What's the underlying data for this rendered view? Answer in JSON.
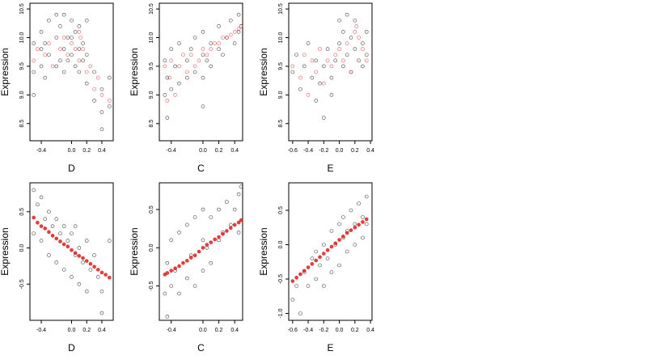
{
  "chart_data": [
    {
      "type": "scatter",
      "xlabel": "D",
      "ylabel": "Expression",
      "xlim": [
        -0.55,
        0.55
      ],
      "ylim": [
        8.2,
        10.6
      ],
      "xticks": [
        -0.4,
        0.0,
        0.2,
        0.4
      ],
      "xtick_labels": [
        "-0.4",
        "0.0",
        "0.2",
        "0.4"
      ],
      "yticks": [
        8.5,
        9.0,
        9.5,
        10.0,
        10.5
      ],
      "ytick_labels": [
        "8.5",
        "9.0",
        "9.5",
        "10.0",
        "10.5"
      ],
      "series": [
        {
          "marker": "open-circle",
          "color": "#000000",
          "x": [
            -0.5,
            -0.5,
            -0.5,
            -0.4,
            -0.4,
            -0.4,
            -0.35,
            -0.35,
            -0.3,
            -0.3,
            -0.2,
            -0.2,
            -0.2,
            -0.15,
            -0.15,
            -0.1,
            -0.1,
            -0.1,
            -0.05,
            -0.05,
            0.0,
            0.0,
            0.0,
            0.05,
            0.05,
            0.1,
            0.1,
            0.1,
            0.15,
            0.15,
            0.2,
            0.2,
            0.2,
            0.3,
            0.3,
            0.4,
            0.4,
            0.4,
            0.5,
            0.5
          ],
          "y": [
            9.4,
            9.9,
            9.0,
            9.8,
            9.5,
            10.1,
            9.3,
            9.9,
            9.7,
            10.3,
            9.5,
            10.0,
            10.4,
            9.6,
            10.2,
            9.8,
            9.4,
            10.4,
            10.0,
            9.6,
            10.3,
            9.7,
            10.0,
            9.5,
            10.1,
            9.8,
            10.2,
            9.4,
            9.9,
            9.6,
            9.2,
            9.7,
            10.3,
            8.9,
            9.4,
            8.7,
            9.1,
            8.4,
            9.3,
            8.8
          ]
        },
        {
          "marker": "open-circle",
          "color": "#e0201c",
          "x": [
            -0.5,
            -0.45,
            -0.35,
            -0.3,
            -0.25,
            -0.15,
            -0.1,
            -0.05,
            0.0,
            0.05,
            0.1,
            0.1,
            0.12,
            0.15,
            0.2,
            0.25,
            0.3,
            0.35,
            0.4,
            0.5
          ],
          "y": [
            9.6,
            9.8,
            9.7,
            9.9,
            9.5,
            9.8,
            10.0,
            9.7,
            9.9,
            9.8,
            10.1,
            9.6,
            10.0,
            9.8,
            9.4,
            9.5,
            9.1,
            9.3,
            9.0,
            8.9
          ]
        }
      ]
    },
    {
      "type": "scatter",
      "xlabel": "C",
      "ylabel": "Expression",
      "xlim": [
        -0.55,
        0.5
      ],
      "ylim": [
        8.2,
        10.6
      ],
      "xticks": [
        -0.4,
        0.0,
        0.2,
        0.4
      ],
      "xtick_labels": [
        "-0.4",
        "0.0",
        "0.2",
        "0.4"
      ],
      "yticks": [
        8.5,
        9.0,
        9.5,
        10.0,
        10.5
      ],
      "ytick_labels": [
        "8.5",
        "9.0",
        "9.5",
        "10.0",
        "10.5"
      ],
      "series": [
        {
          "marker": "open-circle",
          "color": "#000000",
          "x": [
            -0.48,
            -0.48,
            -0.45,
            -0.45,
            -0.4,
            -0.4,
            -0.35,
            -0.3,
            -0.3,
            -0.2,
            -0.2,
            -0.15,
            -0.1,
            -0.1,
            0.0,
            0.0,
            0.0,
            0.0,
            0.05,
            0.1,
            0.1,
            0.2,
            0.2,
            0.25,
            0.3,
            0.35,
            0.4,
            0.45,
            0.45,
            0.48
          ],
          "y": [
            9.0,
            9.6,
            8.6,
            9.3,
            9.8,
            9.1,
            9.5,
            9.9,
            9.2,
            9.6,
            9.3,
            9.8,
            9.4,
            10.0,
            8.8,
            9.3,
            9.7,
            10.1,
            9.6,
            9.9,
            9.5,
            9.8,
            10.2,
            9.7,
            10.0,
            10.3,
            9.9,
            10.1,
            10.4,
            10.2
          ]
        },
        {
          "marker": "open-circle",
          "color": "#e0201c",
          "x": [
            -0.48,
            -0.45,
            -0.42,
            -0.4,
            -0.35,
            -0.3,
            -0.25,
            -0.2,
            -0.15,
            -0.1,
            -0.05,
            0.0,
            0.05,
            0.1,
            0.15,
            0.2,
            0.25,
            0.3,
            0.35,
            0.4,
            0.45,
            0.48
          ],
          "y": [
            9.5,
            8.9,
            9.3,
            9.6,
            9.0,
            9.5,
            9.7,
            9.4,
            9.7,
            9.5,
            9.6,
            9.8,
            9.7,
            9.8,
            9.9,
            9.9,
            10.0,
            10.0,
            10.05,
            10.1,
            10.15,
            10.2
          ]
        }
      ]
    },
    {
      "type": "scatter",
      "xlabel": "E",
      "ylabel": "Expression",
      "xlim": [
        -0.65,
        0.42
      ],
      "ylim": [
        8.2,
        10.6
      ],
      "xticks": [
        -0.6,
        -0.4,
        -0.2,
        0.0,
        0.2,
        0.4
      ],
      "xtick_labels": [
        "-0.6",
        "-0.4",
        "-0.2",
        "0.0",
        "0.2",
        "0.4"
      ],
      "yticks": [
        8.5,
        9.0,
        9.5,
        10.0,
        10.5
      ],
      "ytick_labels": [
        "8.5",
        "9.0",
        "9.5",
        "10.0",
        "10.5"
      ],
      "series": [
        {
          "marker": "open-circle",
          "color": "#000000",
          "x": [
            -0.6,
            -0.55,
            -0.5,
            -0.45,
            -0.4,
            -0.35,
            -0.3,
            -0.3,
            -0.25,
            -0.2,
            -0.2,
            -0.15,
            -0.1,
            -0.1,
            -0.05,
            0.0,
            0.0,
            0.05,
            0.05,
            0.1,
            0.1,
            0.15,
            0.15,
            0.2,
            0.2,
            0.25,
            0.3,
            0.3,
            0.35,
            0.35
          ],
          "y": [
            9.4,
            9.7,
            9.1,
            9.5,
            9.9,
            9.3,
            9.6,
            8.9,
            9.2,
            9.5,
            8.6,
            9.8,
            9.3,
            9.0,
            9.6,
            9.9,
            10.3,
            9.5,
            10.1,
            9.7,
            10.4,
            9.4,
            10.0,
            9.8,
            10.3,
            9.6,
            9.9,
            9.5,
            9.7,
            10.1
          ]
        },
        {
          "marker": "open-circle",
          "color": "#e0201c",
          "x": [
            -0.6,
            -0.5,
            -0.45,
            -0.4,
            -0.35,
            -0.3,
            -0.25,
            -0.2,
            -0.15,
            -0.1,
            -0.05,
            0.0,
            0.05,
            0.1,
            0.15,
            0.2,
            0.22,
            0.25,
            0.3,
            0.35
          ],
          "y": [
            9.5,
            9.3,
            9.7,
            9.0,
            9.6,
            9.4,
            9.8,
            9.2,
            9.6,
            9.5,
            9.7,
            9.8,
            9.6,
            9.9,
            9.4,
            10.1,
            10.2,
            10.0,
            9.8,
            9.6
          ]
        }
      ]
    },
    {
      "type": "scatter",
      "xlabel": "D",
      "ylabel": "Expression",
      "xlim": [
        -0.55,
        0.55
      ],
      "ylim": [
        -1.0,
        0.9
      ],
      "xticks": [
        -0.4,
        0.0,
        0.2,
        0.4
      ],
      "xtick_labels": [
        "-0.4",
        "0.0",
        "0.2",
        "0.4"
      ],
      "yticks": [
        -0.5,
        0.0,
        0.5
      ],
      "ytick_labels": [
        "-0.5",
        "0.0",
        "0.5"
      ],
      "series": [
        {
          "marker": "open-circle",
          "color": "#000000",
          "x": [
            -0.5,
            -0.5,
            -0.45,
            -0.4,
            -0.4,
            -0.35,
            -0.3,
            -0.3,
            -0.25,
            -0.2,
            -0.2,
            -0.15,
            -0.1,
            -0.1,
            -0.05,
            0.0,
            0.0,
            0.05,
            0.05,
            0.1,
            0.1,
            0.15,
            0.2,
            0.2,
            0.25,
            0.3,
            0.35,
            0.4,
            0.4,
            0.5
          ],
          "y": [
            0.8,
            0.2,
            0.6,
            0.7,
            0.1,
            0.4,
            0.5,
            -0.1,
            0.3,
            0.4,
            -0.2,
            0.2,
            0.3,
            -0.3,
            0.1,
            0.2,
            -0.4,
            -0.1,
            0.3,
            0.0,
            -0.5,
            -0.2,
            0.1,
            -0.6,
            -0.3,
            -0.1,
            -0.4,
            -0.6,
            -0.9,
            0.1
          ]
        },
        {
          "marker": "filled-circle",
          "color": "#e0201c",
          "x": [
            -0.5,
            -0.45,
            -0.4,
            -0.35,
            -0.3,
            -0.25,
            -0.2,
            -0.15,
            -0.1,
            -0.05,
            0.0,
            0.05,
            0.1,
            0.15,
            0.2,
            0.25,
            0.3,
            0.35,
            0.4,
            0.45,
            0.5
          ],
          "y": [
            0.42,
            0.35,
            0.3,
            0.27,
            0.22,
            0.17,
            0.13,
            0.09,
            0.05,
            0.02,
            -0.03,
            -0.07,
            -0.11,
            -0.14,
            -0.18,
            -0.22,
            -0.26,
            -0.3,
            -0.34,
            -0.37,
            -0.41
          ]
        }
      ]
    },
    {
      "type": "scatter",
      "xlabel": "C",
      "ylabel": "Expression",
      "xlim": [
        -0.55,
        0.5
      ],
      "ylim": [
        -0.95,
        0.85
      ],
      "xticks": [
        -0.4,
        0.0,
        0.2,
        0.4
      ],
      "xtick_labels": [
        "-0.4",
        "0.0",
        "0.2",
        "0.4"
      ],
      "yticks": [
        -0.5,
        0.0,
        0.5
      ],
      "ytick_labels": [
        "-0.5",
        "0.0",
        "0.5"
      ],
      "series": [
        {
          "marker": "open-circle",
          "color": "#000000",
          "x": [
            -0.48,
            -0.45,
            -0.45,
            -0.4,
            -0.4,
            -0.35,
            -0.3,
            -0.3,
            -0.2,
            -0.2,
            -0.15,
            -0.1,
            -0.1,
            0.0,
            0.0,
            0.0,
            0.05,
            0.1,
            0.1,
            0.2,
            0.2,
            0.25,
            0.3,
            0.35,
            0.4,
            0.45,
            0.45,
            0.48
          ],
          "y": [
            -0.6,
            -0.9,
            -0.2,
            -0.5,
            0.1,
            -0.3,
            -0.6,
            0.2,
            -0.4,
            0.3,
            -0.1,
            -0.5,
            0.4,
            -0.3,
            0.1,
            0.5,
            0.0,
            -0.2,
            0.4,
            0.1,
            0.5,
            0.2,
            0.6,
            0.3,
            0.5,
            0.7,
            0.2,
            0.8
          ]
        },
        {
          "marker": "filled-circle",
          "color": "#e0201c",
          "x": [
            -0.48,
            -0.45,
            -0.4,
            -0.35,
            -0.3,
            -0.25,
            -0.2,
            -0.15,
            -0.1,
            -0.05,
            0.0,
            0.05,
            0.1,
            0.15,
            0.2,
            0.25,
            0.3,
            0.35,
            0.4,
            0.45,
            0.48
          ],
          "y": [
            -0.35,
            -0.33,
            -0.3,
            -0.27,
            -0.24,
            -0.2,
            -0.17,
            -0.13,
            -0.1,
            -0.05,
            0.0,
            0.04,
            0.07,
            0.11,
            0.14,
            0.18,
            0.22,
            0.26,
            0.3,
            0.33,
            0.36
          ]
        }
      ]
    },
    {
      "type": "scatter",
      "xlabel": "E",
      "ylabel": "Expression",
      "xlim": [
        -0.65,
        0.42
      ],
      "ylim": [
        -1.1,
        0.9
      ],
      "xticks": [
        -0.6,
        -0.4,
        -0.2,
        0.0,
        0.2,
        0.4
      ],
      "xtick_labels": [
        "-0.6",
        "-0.4",
        "-0.2",
        "0.0",
        "0.2",
        "0.4"
      ],
      "yticks": [
        -1.0,
        -0.5,
        0.0,
        0.5
      ],
      "ytick_labels": [
        "-1.0",
        "-0.5",
        "0.0",
        "0.5"
      ],
      "series": [
        {
          "marker": "open-circle",
          "color": "#000000",
          "x": [
            -0.6,
            -0.55,
            -0.5,
            -0.45,
            -0.4,
            -0.35,
            -0.3,
            -0.3,
            -0.25,
            -0.2,
            -0.2,
            -0.15,
            -0.1,
            -0.1,
            -0.05,
            0.0,
            0.0,
            0.05,
            0.05,
            0.1,
            0.1,
            0.15,
            0.2,
            0.2,
            0.25,
            0.3,
            0.3,
            0.35,
            0.35
          ],
          "y": [
            -0.8,
            -0.6,
            -1.0,
            -0.4,
            -0.6,
            -0.2,
            -0.5,
            -0.1,
            -0.3,
            -0.6,
            0.0,
            -0.2,
            0.2,
            -0.4,
            0.0,
            0.3,
            -0.3,
            0.1,
            0.4,
            0.2,
            -0.1,
            0.5,
            0.3,
            0.0,
            0.6,
            0.4,
            0.1,
            0.7,
            0.3
          ]
        },
        {
          "marker": "filled-circle",
          "color": "#e0201c",
          "x": [
            -0.6,
            -0.55,
            -0.5,
            -0.45,
            -0.4,
            -0.35,
            -0.3,
            -0.25,
            -0.2,
            -0.15,
            -0.1,
            -0.05,
            0.0,
            0.05,
            0.1,
            0.15,
            0.2,
            0.25,
            0.3,
            0.35
          ],
          "y": [
            -0.53,
            -0.48,
            -0.43,
            -0.38,
            -0.33,
            -0.28,
            -0.23,
            -0.18,
            -0.13,
            -0.08,
            -0.03,
            0.02,
            0.07,
            0.12,
            0.17,
            0.21,
            0.25,
            0.29,
            0.33,
            0.37
          ]
        }
      ]
    }
  ]
}
